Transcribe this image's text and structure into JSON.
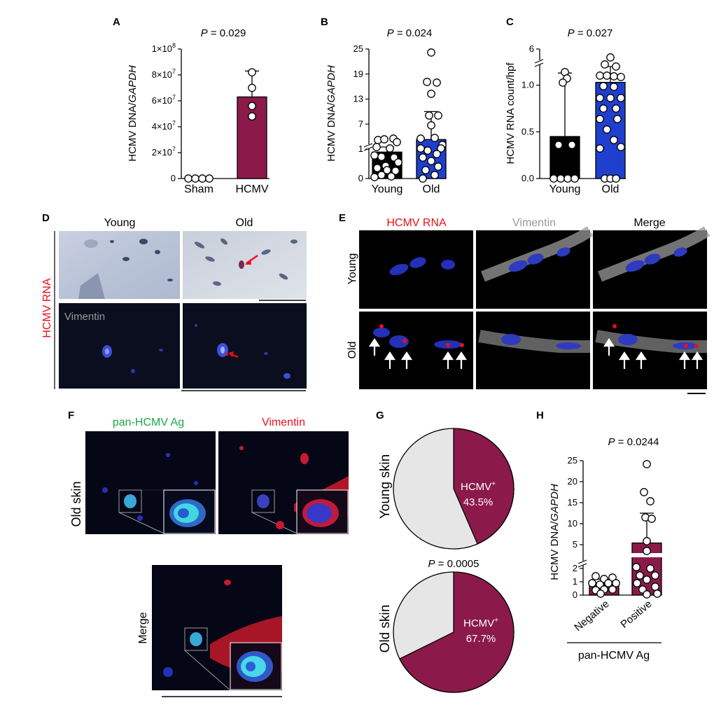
{
  "panels": {
    "A": {
      "letter": "A",
      "p_prefix": "P",
      "p_suffix": " = 0.029",
      "ylabel_main": "HCMV DNA/",
      "ylabel_italic": "GAPDH"
    },
    "B": {
      "letter": "B",
      "p_prefix": "P",
      "p_suffix": " = 0.024",
      "ylabel_main": "HCMV DNA/",
      "ylabel_italic": "GAPDH"
    },
    "C": {
      "letter": "C",
      "p_prefix": "P",
      "p_suffix": " = 0.027",
      "ylabel": "HCMV RNA count/hpf"
    },
    "D": {
      "letter": "D",
      "col_young": "Young",
      "col_old": "Old",
      "side_label": "HCMV RNA",
      "vimentin_label": "Vimentin"
    },
    "E": {
      "letter": "E",
      "col1": "HCMV RNA",
      "col2": "Vimentin",
      "col3": "Merge",
      "row_young": "Young",
      "row_old": "Old"
    },
    "F": {
      "letter": "F",
      "col1": "pan-HCMV Ag",
      "col2": "Vimentin",
      "row_label": "Old skin",
      "merge_label": "Merge"
    },
    "G": {
      "letter": "G",
      "young_label": "Young skin",
      "old_label": "Old skin",
      "p_prefix": "P",
      "p_suffix": " = 0.0005",
      "young_text1": "HCMV",
      "young_sup": "+",
      "young_text2": "43.5%",
      "old_text1": "HCMV",
      "old_sup": "+",
      "old_text2": "67.7%"
    },
    "H": {
      "letter": "H",
      "p_prefix": "P",
      "p_suffix": " = 0.0244",
      "ylabel_main": "HCMV DNA/",
      "ylabel_italic": "GAPDH",
      "group_label": "pan-HCMV Ag"
    }
  },
  "colors": {
    "maroon": "#8b1a4a",
    "blue": "#1f3fcf",
    "black": "#000000",
    "grey_slice": "#e6e6e6",
    "red_text": "#e8101c",
    "green_text": "#1aa84a",
    "grey_text": "#8c8c8c"
  },
  "chart_data": [
    {
      "panel": "A",
      "type": "bar",
      "categories": [
        "Sham",
        "HCMV"
      ],
      "values": [
        0,
        63000000
      ],
      "error_upper": [
        0,
        83000000
      ],
      "points": [
        [
          0,
          0,
          0,
          0
        ],
        [
          82000000,
          70000000,
          56000000,
          48000000
        ]
      ],
      "ylabel": "HCMV DNA/GAPDH",
      "yticks": [
        "0",
        "2×10",
        "4×10",
        "6×10",
        "8×10",
        "1×10"
      ],
      "ytick_exponents": [
        "",
        "7",
        "7",
        "7",
        "7",
        "8"
      ],
      "ylim": [
        0,
        100000000
      ]
    },
    {
      "panel": "B",
      "type": "bar",
      "categories": [
        "Young",
        "Old"
      ],
      "values": [
        0.9,
        3.3
      ],
      "error_upper": [
        1.5,
        10
      ],
      "ylabel": "HCMV DNA/GAPDH",
      "yticks": [
        "0",
        "1",
        "7",
        "13",
        "19",
        "25"
      ],
      "axis_break": true
    },
    {
      "panel": "C",
      "type": "bar",
      "categories": [
        "Young",
        "Old"
      ],
      "values": [
        0.45,
        1.03
      ],
      "error_upper": [
        1.13,
        1.2
      ],
      "ylabel": "HCMV RNA count/hpf",
      "yticks": [
        "0.0",
        "0.5",
        "1.0",
        "6"
      ],
      "axis_break": true
    },
    {
      "panel": "G",
      "type": "pie",
      "series": [
        {
          "name": "Young skin",
          "values": [
            43.5,
            56.5
          ]
        },
        {
          "name": "Old skin",
          "values": [
            67.7,
            32.3
          ]
        }
      ]
    },
    {
      "panel": "H",
      "type": "bar",
      "categories": [
        "Negative",
        "Positive"
      ],
      "values": [
        0.8,
        5.4
      ],
      "error_upper": [
        1.2,
        12.5
      ],
      "ylabel": "HCMV DNA/GAPDH",
      "yticks": [
        "0",
        "1",
        "2",
        "5",
        "10",
        "15",
        "20",
        "25"
      ],
      "axis_break": true
    }
  ]
}
